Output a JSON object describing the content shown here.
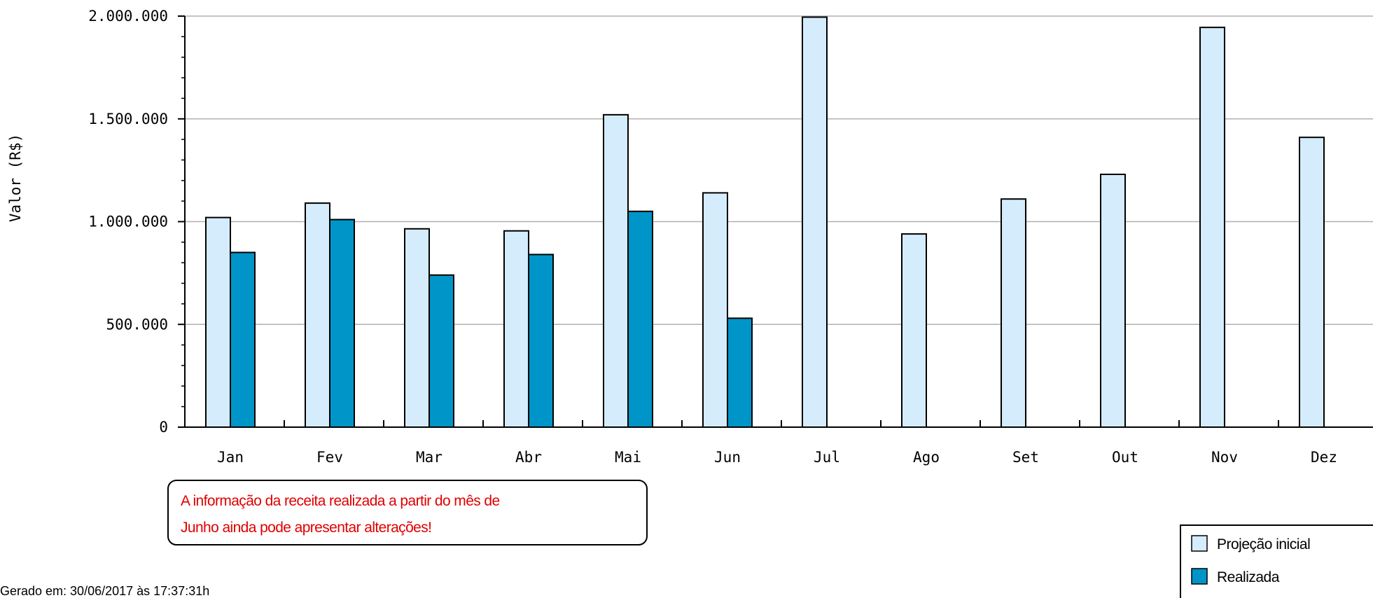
{
  "chart_data": {
    "type": "bar",
    "categories": [
      "Jan",
      "Fev",
      "Mar",
      "Abr",
      "Mai",
      "Jun",
      "Jul",
      "Ago",
      "Set",
      "Out",
      "Nov",
      "Dez"
    ],
    "series": [
      {
        "name": "Projeção inicial",
        "color": "#d4ecfb",
        "values": [
          1020000,
          1090000,
          965000,
          955000,
          1520000,
          1140000,
          1995000,
          940000,
          1110000,
          1230000,
          1945000,
          1410000
        ]
      },
      {
        "name": "Realizada",
        "color": "#0095c8",
        "values": [
          850000,
          1010000,
          740000,
          840000,
          1050000,
          530000,
          null,
          null,
          null,
          null,
          null,
          null
        ]
      }
    ],
    "ylabel": "Valor (R$)",
    "xlabel": "",
    "ylim": [
      0,
      2000000
    ],
    "yticks": [
      0,
      500000,
      1000000,
      1500000,
      2000000
    ],
    "ytick_labels": [
      "0",
      "500.000",
      "1.000.000",
      "1.500.000",
      "2.000.000"
    ],
    "grid": true,
    "legend_position": "bottom-right"
  },
  "annotation": {
    "lines": [
      "A informação da receita realizada a partir do mês de",
      "Junho ainda pode apresentar alterações!"
    ],
    "color": "#e00000"
  },
  "footer": {
    "generated": "Gerado em: 30/06/2017 às 17:37:31h"
  }
}
